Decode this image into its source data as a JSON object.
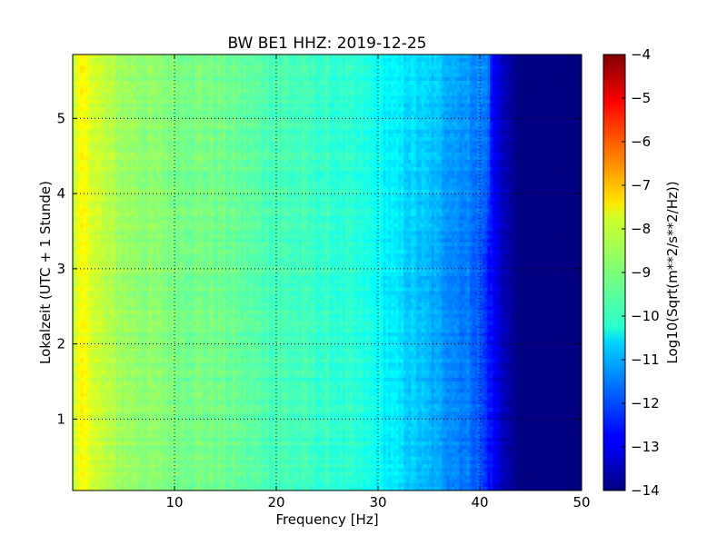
{
  "chart_data": {
    "type": "heatmap",
    "title": "BW BE1 HHZ: 2019-12-25",
    "xlabel": "Frequency [Hz]",
    "ylabel": "Lokalzeit (UTC + 1 Stunde)",
    "colorbar_label": "Log10(Sqrt(m**2/s**2/Hz))",
    "xlim": [
      0,
      50
    ],
    "ylim": [
      5.85,
      0.05
    ],
    "x_ticks": [
      "10",
      "20",
      "30",
      "40",
      "50"
    ],
    "y_ticks": [
      "1",
      "2",
      "3",
      "4",
      "5"
    ],
    "color_range": [
      -14,
      -4
    ],
    "colorbar_ticks": [
      "-4",
      "-5",
      "-6",
      "-7",
      "-8",
      "-9",
      "-10",
      "-11",
      "-12",
      "-13",
      "-14"
    ],
    "colormap": "jet",
    "grid": true,
    "frequency_profile": {
      "frequency_hz": [
        0,
        0.5,
        1,
        2,
        3,
        5,
        8,
        10,
        14,
        18,
        22,
        26,
        29,
        31,
        33,
        35,
        37,
        39,
        40,
        41,
        42,
        43,
        44,
        50
      ],
      "log10_amplitude": [
        -8.6,
        -8.0,
        -7.8,
        -8.1,
        -8.4,
        -8.7,
        -8.9,
        -9.0,
        -9.1,
        -9.4,
        -9.6,
        -9.8,
        -10.0,
        -10.4,
        -10.7,
        -11.0,
        -11.3,
        -11.6,
        -11.9,
        -12.6,
        -13.2,
        -13.7,
        -14.0,
        -14.0
      ]
    }
  }
}
